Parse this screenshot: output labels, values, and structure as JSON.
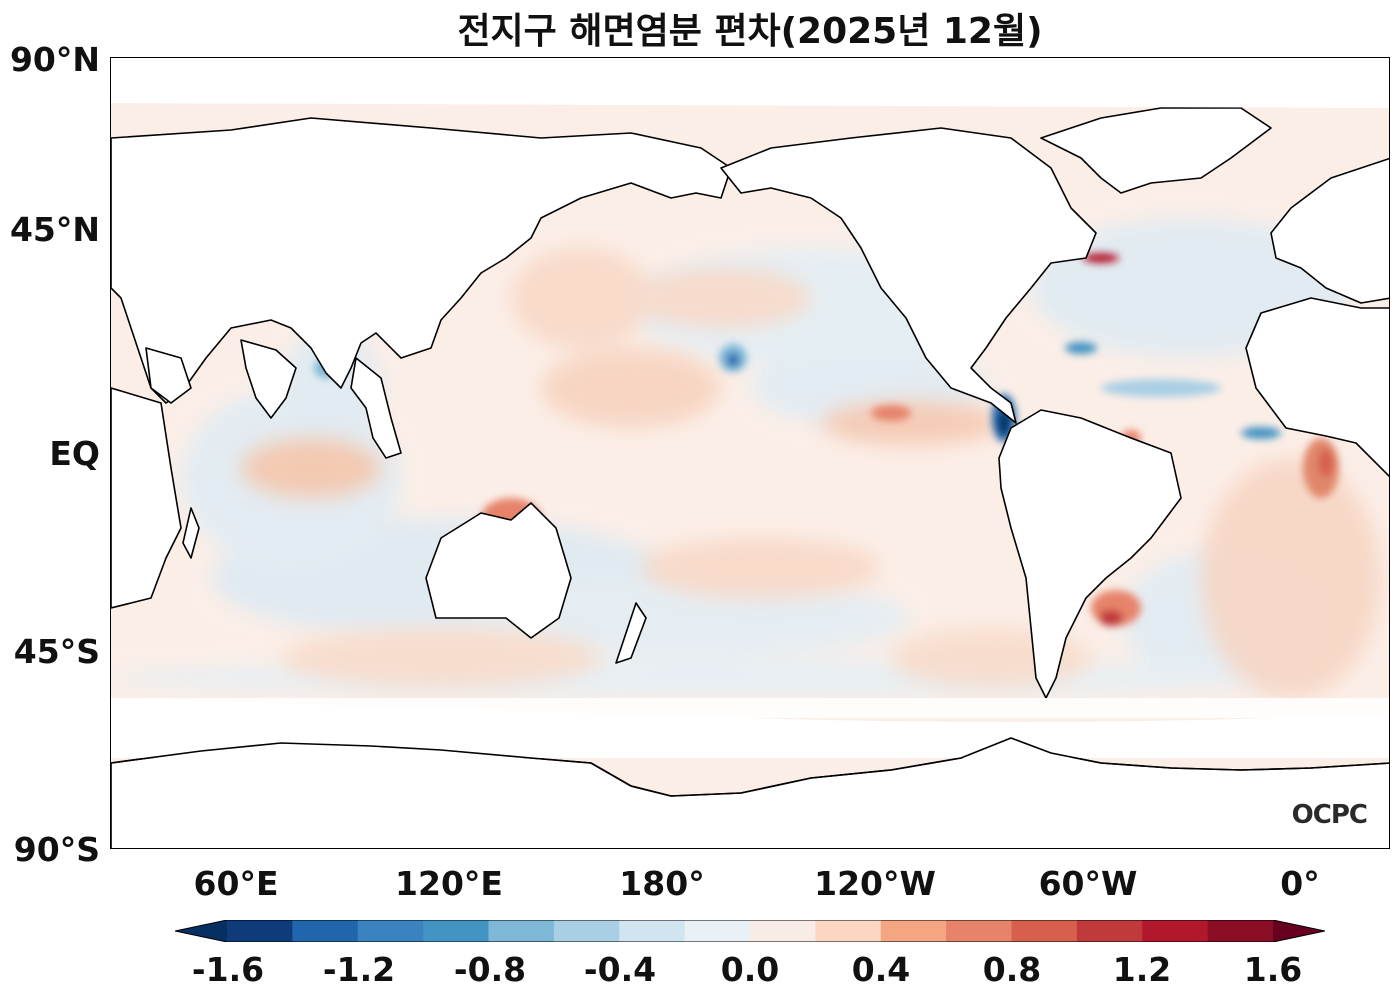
{
  "title": "전지구 해면염분 편차(2025년 12월)",
  "y_axis_ticks": [
    "90°N",
    "45°N",
    "EQ",
    "45°S",
    "90°S"
  ],
  "x_axis_ticks": [
    "60°E",
    "120°E",
    "180°",
    "120°W",
    "60°W",
    "0°"
  ],
  "colorbar": {
    "ticks": [
      "-1.6",
      "-1.2",
      "-0.8",
      "-0.4",
      "0.0",
      "0.4",
      "0.8",
      "1.2",
      "1.6"
    ],
    "colors": [
      "#053061",
      "#0f3b7a",
      "#2166ac",
      "#3a83bf",
      "#4393c3",
      "#7fb7d7",
      "#a9cfe5",
      "#d1e5f0",
      "#e9f1f6",
      "#f7ece6",
      "#fbd6c2",
      "#f4a582",
      "#e6836a",
      "#d6604d",
      "#c0393b",
      "#b2182b",
      "#8a0f25",
      "#67001f"
    ]
  },
  "logo": "OCPC"
}
